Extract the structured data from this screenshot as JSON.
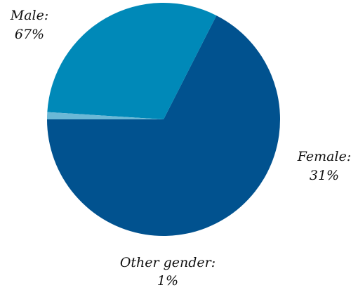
{
  "chart_data": {
    "type": "pie",
    "slices": [
      {
        "label": "Male:",
        "value_label": "67%",
        "value": 67.5,
        "color": "#01528f"
      },
      {
        "label": "Female:",
        "value_label": "31%",
        "value": 31.5,
        "color": "#0089b8"
      },
      {
        "label": "Other gender:",
        "value_label": "1%",
        "value": 1,
        "color": "#6bb8d6"
      }
    ],
    "start_angle_deg": 180,
    "direction": "counterclockwise",
    "legend": "none"
  }
}
